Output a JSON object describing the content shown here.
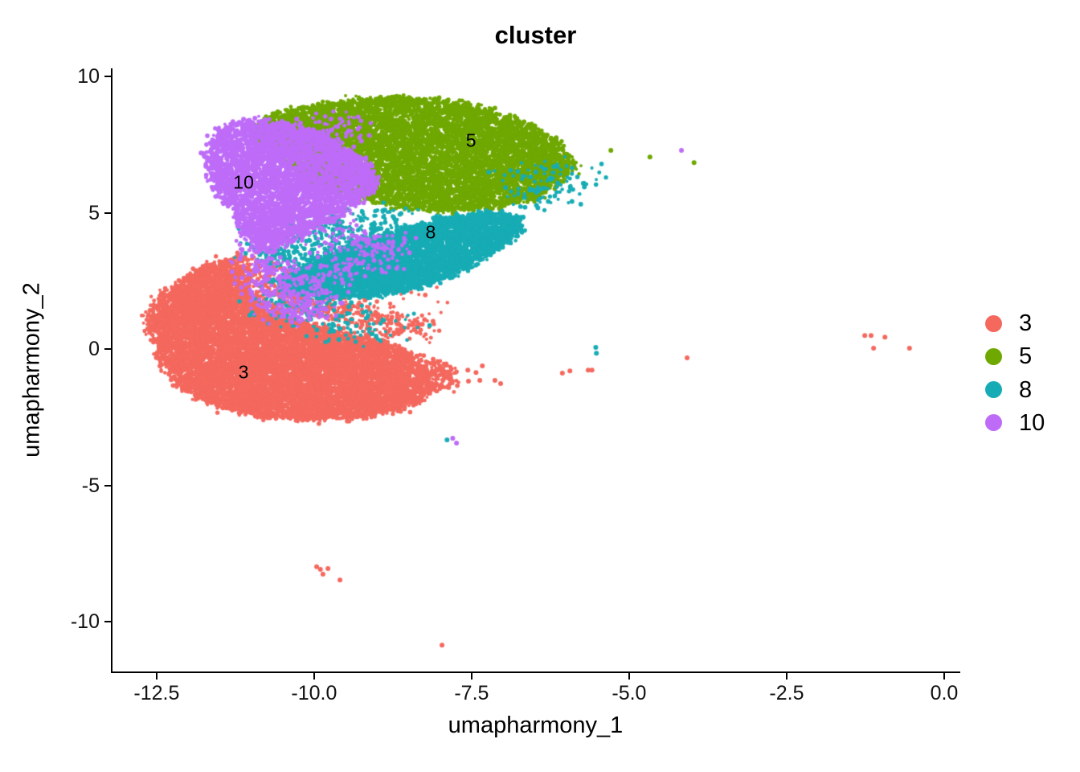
{
  "title": "cluster",
  "chart_data": {
    "type": "scatter",
    "title": "cluster",
    "xlabel": "umapharmony_1",
    "ylabel": "umapharmony_2",
    "xlim": [
      -13.2,
      0.23
    ],
    "ylim": [
      -11.83,
      10.3
    ],
    "x_ticks": [
      -12.5,
      -10.0,
      -7.5,
      -5.0,
      -2.5,
      0.0
    ],
    "x_tick_labels": [
      "-12.5",
      "-10.0",
      "-7.5",
      "-5.0",
      "-2.5",
      "0.0"
    ],
    "y_ticks": [
      10,
      5,
      0,
      -5,
      -10
    ],
    "y_tick_labels": [
      "10",
      "5",
      "0",
      "-5",
      "-10"
    ],
    "grid": false,
    "legend_position": "right",
    "clusters": [
      {
        "id": "3",
        "color": "#F4685E",
        "label": "3",
        "label_pos": [
          -11.12,
          -0.86
        ],
        "regions": [
          {
            "poly": [
              [
                -12.63,
                1.24
              ],
              [
                -12.33,
                2.12
              ],
              [
                -11.86,
                2.86
              ],
              [
                -11.38,
                3.3
              ],
              [
                -11.19,
                3.13
              ],
              [
                -11.05,
                2.27
              ],
              [
                -10.78,
                1.65
              ],
              [
                -10.29,
                1.06
              ],
              [
                -9.63,
                0.62
              ],
              [
                -8.97,
                0.29
              ],
              [
                -8.46,
                -0.18
              ],
              [
                -8.15,
                -0.8
              ],
              [
                -8.09,
                -1.42
              ],
              [
                -8.34,
                -1.98
              ],
              [
                -8.95,
                -2.39
              ],
              [
                -9.82,
                -2.63
              ],
              [
                -10.74,
                -2.51
              ],
              [
                -11.52,
                -2.09
              ],
              [
                -12.1,
                -1.39
              ],
              [
                -12.47,
                -0.24
              ]
            ],
            "n": 11000,
            "jitter": 0.07
          },
          {
            "poly": [
              [
                -11.15,
                3.5
              ],
              [
                -10.3,
                2.6
              ],
              [
                -9.3,
                1.7
              ],
              [
                -8.3,
                1.0
              ],
              [
                -8.0,
                0.4
              ],
              [
                -9.2,
                0.7
              ],
              [
                -10.6,
                1.7
              ],
              [
                -11.25,
                2.8
              ]
            ],
            "n": 550,
            "jitter": 0.13
          },
          {
            "poly": [
              [
                -8.15,
                -0.45
              ],
              [
                -7.75,
                -0.55
              ],
              [
                -7.8,
                -1.55
              ],
              [
                -8.2,
                -1.45
              ]
            ],
            "n": 110,
            "jitter": 0.05
          },
          {
            "poly": [
              [
                -10.5,
                2.7
              ],
              [
                -9.0,
                1.9
              ],
              [
                -8.0,
                1.2
              ],
              [
                -8.6,
                2.6
              ],
              [
                -9.8,
                3.2
              ]
            ],
            "n": 120,
            "jitter": 0.25
          }
        ],
        "outliers": [
          [
            -7.56,
            -0.77
          ],
          [
            -7.43,
            -0.86
          ],
          [
            -7.33,
            -0.62
          ],
          [
            -7.55,
            -1.18
          ],
          [
            -7.37,
            -1.15
          ],
          [
            -7.13,
            -1.15
          ],
          [
            -7.04,
            -1.27
          ],
          [
            -6.06,
            -0.88
          ],
          [
            -5.94,
            -0.8
          ],
          [
            -5.65,
            -0.77
          ],
          [
            -5.59,
            -0.77
          ],
          [
            -4.08,
            -0.32
          ],
          [
            -1.26,
            0.5
          ],
          [
            -1.16,
            0.5
          ],
          [
            -0.94,
            0.44
          ],
          [
            -1.12,
            0.03
          ],
          [
            -0.55,
            0.03
          ],
          [
            -9.96,
            -7.99
          ],
          [
            -9.9,
            -8.08
          ],
          [
            -9.86,
            -8.26
          ],
          [
            -9.78,
            -8.05
          ],
          [
            -9.59,
            -8.47
          ],
          [
            -7.97,
            -10.86
          ]
        ]
      },
      {
        "id": "5",
        "color": "#6FA800",
        "label": "5",
        "label_pos": [
          -7.51,
          7.64
        ],
        "regions": [
          {
            "poly": [
              [
                -11.03,
                8.08
              ],
              [
                -10.46,
                8.76
              ],
              [
                -9.5,
                9.14
              ],
              [
                -8.55,
                9.29
              ],
              [
                -7.59,
                9.03
              ],
              [
                -6.76,
                8.44
              ],
              [
                -6.15,
                7.67
              ],
              [
                -5.85,
                6.78
              ],
              [
                -6.06,
                6.11
              ],
              [
                -6.53,
                5.46
              ],
              [
                -7.21,
                5.16
              ],
              [
                -8.0,
                5.04
              ],
              [
                -8.71,
                5.22
              ],
              [
                -9.33,
                5.55
              ],
              [
                -9.91,
                6.08
              ],
              [
                -10.42,
                6.81
              ],
              [
                -10.8,
                7.49
              ]
            ],
            "n": 7800,
            "jitter": 0.06
          },
          {
            "poly": [
              [
                -10.9,
                7.9
              ],
              [
                -10.0,
                8.5
              ],
              [
                -9.2,
                8.8
              ],
              [
                -9.0,
                8.0
              ],
              [
                -10.0,
                7.4
              ]
            ],
            "n": 260,
            "jitter": 0.2
          }
        ],
        "outliers": [
          [
            -5.29,
            7.29
          ],
          [
            -4.67,
            7.05
          ],
          [
            -3.97,
            6.84
          ]
        ]
      },
      {
        "id": "8",
        "color": "#17ACB5",
        "label": "8",
        "label_pos": [
          -8.15,
          4.28
        ],
        "regions": [
          {
            "poly": [
              [
                -10.69,
                2.42
              ],
              [
                -10.08,
                3.16
              ],
              [
                -9.41,
                3.78
              ],
              [
                -8.71,
                4.34
              ],
              [
                -7.97,
                4.81
              ],
              [
                -7.24,
                5.07
              ],
              [
                -6.72,
                4.78
              ],
              [
                -6.71,
                4.31
              ],
              [
                -7.13,
                3.57
              ],
              [
                -7.75,
                2.74
              ],
              [
                -8.42,
                2.21
              ],
              [
                -9.14,
                1.92
              ],
              [
                -9.82,
                1.86
              ],
              [
                -10.31,
                2.06
              ]
            ],
            "n": 5200,
            "jitter": 0.06
          },
          {
            "poly": [
              [
                -10.9,
                4.1
              ],
              [
                -9.6,
                5.0
              ],
              [
                -8.6,
                5.1
              ],
              [
                -8.8,
                3.9
              ],
              [
                -9.9,
                2.9
              ],
              [
                -10.9,
                3.0
              ]
            ],
            "n": 450,
            "jitter": 0.18
          },
          {
            "poly": [
              [
                -10.8,
                2.3
              ],
              [
                -9.6,
                1.6
              ],
              [
                -8.5,
                0.9
              ],
              [
                -9.3,
                0.3
              ],
              [
                -10.6,
                1.1
              ]
            ],
            "n": 160,
            "jitter": 0.25
          },
          {
            "poly": [
              [
                -7.1,
                6.4
              ],
              [
                -5.9,
                6.9
              ],
              [
                -5.6,
                5.8
              ],
              [
                -6.9,
                5.1
              ]
            ],
            "n": 110,
            "jitter": 0.25
          }
        ],
        "outliers": [
          [
            -5.53,
            0.06
          ],
          [
            -5.52,
            -0.15
          ],
          [
            -7.89,
            -3.33
          ]
        ]
      },
      {
        "id": "10",
        "color": "#BE6CF8",
        "label": "10",
        "label_pos": [
          -11.12,
          6.11
        ],
        "regions": [
          {
            "poly": [
              [
                -11.51,
                8.08
              ],
              [
                -11.01,
                8.47
              ],
              [
                -10.5,
                8.32
              ],
              [
                -9.89,
                7.91
              ],
              [
                -9.4,
                7.32
              ],
              [
                -9.09,
                6.64
              ],
              [
                -8.99,
                5.93
              ],
              [
                -9.31,
                5.37
              ],
              [
                -9.78,
                4.63
              ],
              [
                -10.29,
                4.04
              ],
              [
                -10.71,
                3.57
              ],
              [
                -10.99,
                3.75
              ],
              [
                -11.13,
                4.31
              ],
              [
                -11.27,
                5.04
              ],
              [
                -11.56,
                5.78
              ],
              [
                -11.72,
                7.02
              ]
            ],
            "n": 4600,
            "jitter": 0.06
          },
          {
            "poly": [
              [
                -11.15,
                3.9
              ],
              [
                -10.45,
                3.3
              ],
              [
                -9.85,
                2.5
              ],
              [
                -9.7,
                1.5
              ],
              [
                -10.25,
                0.9
              ],
              [
                -10.85,
                1.3
              ],
              [
                -11.1,
                2.5
              ]
            ],
            "n": 380,
            "jitter": 0.15
          },
          {
            "poly": [
              [
                -9.7,
                4.6
              ],
              [
                -8.6,
                4.1
              ],
              [
                -8.8,
                2.9
              ],
              [
                -9.9,
                2.3
              ]
            ],
            "n": 200,
            "jitter": 0.2
          },
          {
            "poly": [
              [
                -10.4,
                8.3
              ],
              [
                -9.3,
                8.6
              ],
              [
                -9.2,
                7.9
              ],
              [
                -10.2,
                7.5
              ]
            ],
            "n": 70,
            "jitter": 0.2
          }
        ],
        "outliers": [
          [
            -4.17,
            7.29
          ],
          [
            -7.8,
            -3.27
          ],
          [
            -7.74,
            -3.45
          ]
        ]
      }
    ]
  },
  "legend": {
    "entries": [
      {
        "label": "3",
        "color": "#F4685E"
      },
      {
        "label": "5",
        "color": "#6FA800"
      },
      {
        "label": "8",
        "color": "#17ACB5"
      },
      {
        "label": "10",
        "color": "#BE6CF8"
      }
    ]
  },
  "colors": {
    "background": "#ffffff",
    "axis": "#000000",
    "text": "#111111"
  }
}
